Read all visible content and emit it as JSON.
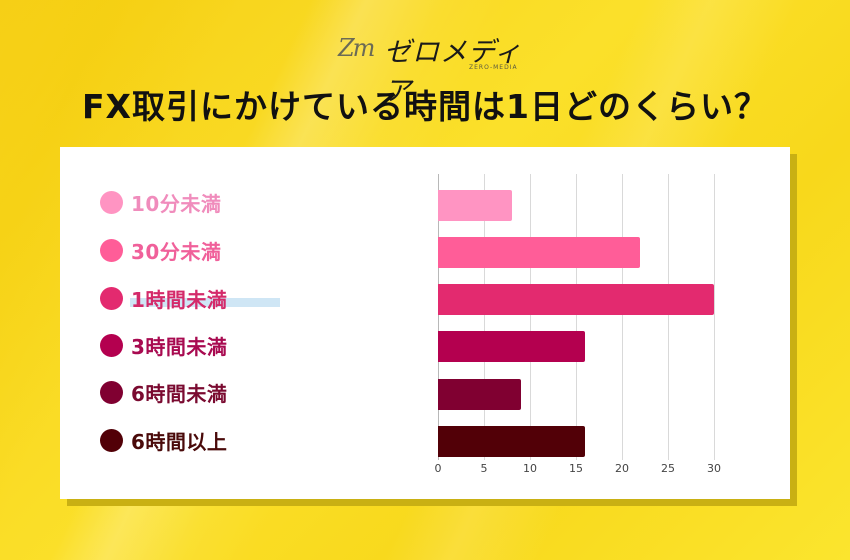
{
  "header": {
    "logo_mark": "Zm",
    "logo_text": "ゼロメディア",
    "logo_sub": "ZERO-MEDIA",
    "title": "FX取引にかけている時間は1日どのくらい？"
  },
  "legend": [
    {
      "label": "10分未満",
      "color": "#ff94c2",
      "text_color": "#f08cbc"
    },
    {
      "label": "30分未満",
      "color": "#ff5d98",
      "text_color": "#f0609a"
    },
    {
      "label": "1時間未満",
      "color": "#e32a6f",
      "text_color": "#d42a6a"
    },
    {
      "label": "3時間未満",
      "color": "#b4004f",
      "text_color": "#a80a50"
    },
    {
      "label": "6時間未満",
      "color": "#800031",
      "text_color": "#7a0a30"
    },
    {
      "label": "6時間以上",
      "color": "#520007",
      "text_color": "#4a0a0a"
    }
  ],
  "chart_data": {
    "type": "bar",
    "orientation": "horizontal",
    "title": "FX取引にかけている時間は1日どのくらい？",
    "categories": [
      "10分未満",
      "30分未満",
      "1時間未満",
      "3時間未満",
      "6時間未満",
      "6時間以上"
    ],
    "values": [
      8,
      22,
      30,
      16,
      9,
      16
    ],
    "colors": [
      "#ff94c2",
      "#ff5d98",
      "#e32a6f",
      "#b4004f",
      "#800031",
      "#520007"
    ],
    "xlabel": "",
    "ylabel": "",
    "xlim": [
      0,
      30
    ],
    "xticks": [
      "0",
      "5",
      "10",
      "15",
      "20",
      "25",
      "30"
    ],
    "grid": true,
    "legend_position": "left"
  }
}
